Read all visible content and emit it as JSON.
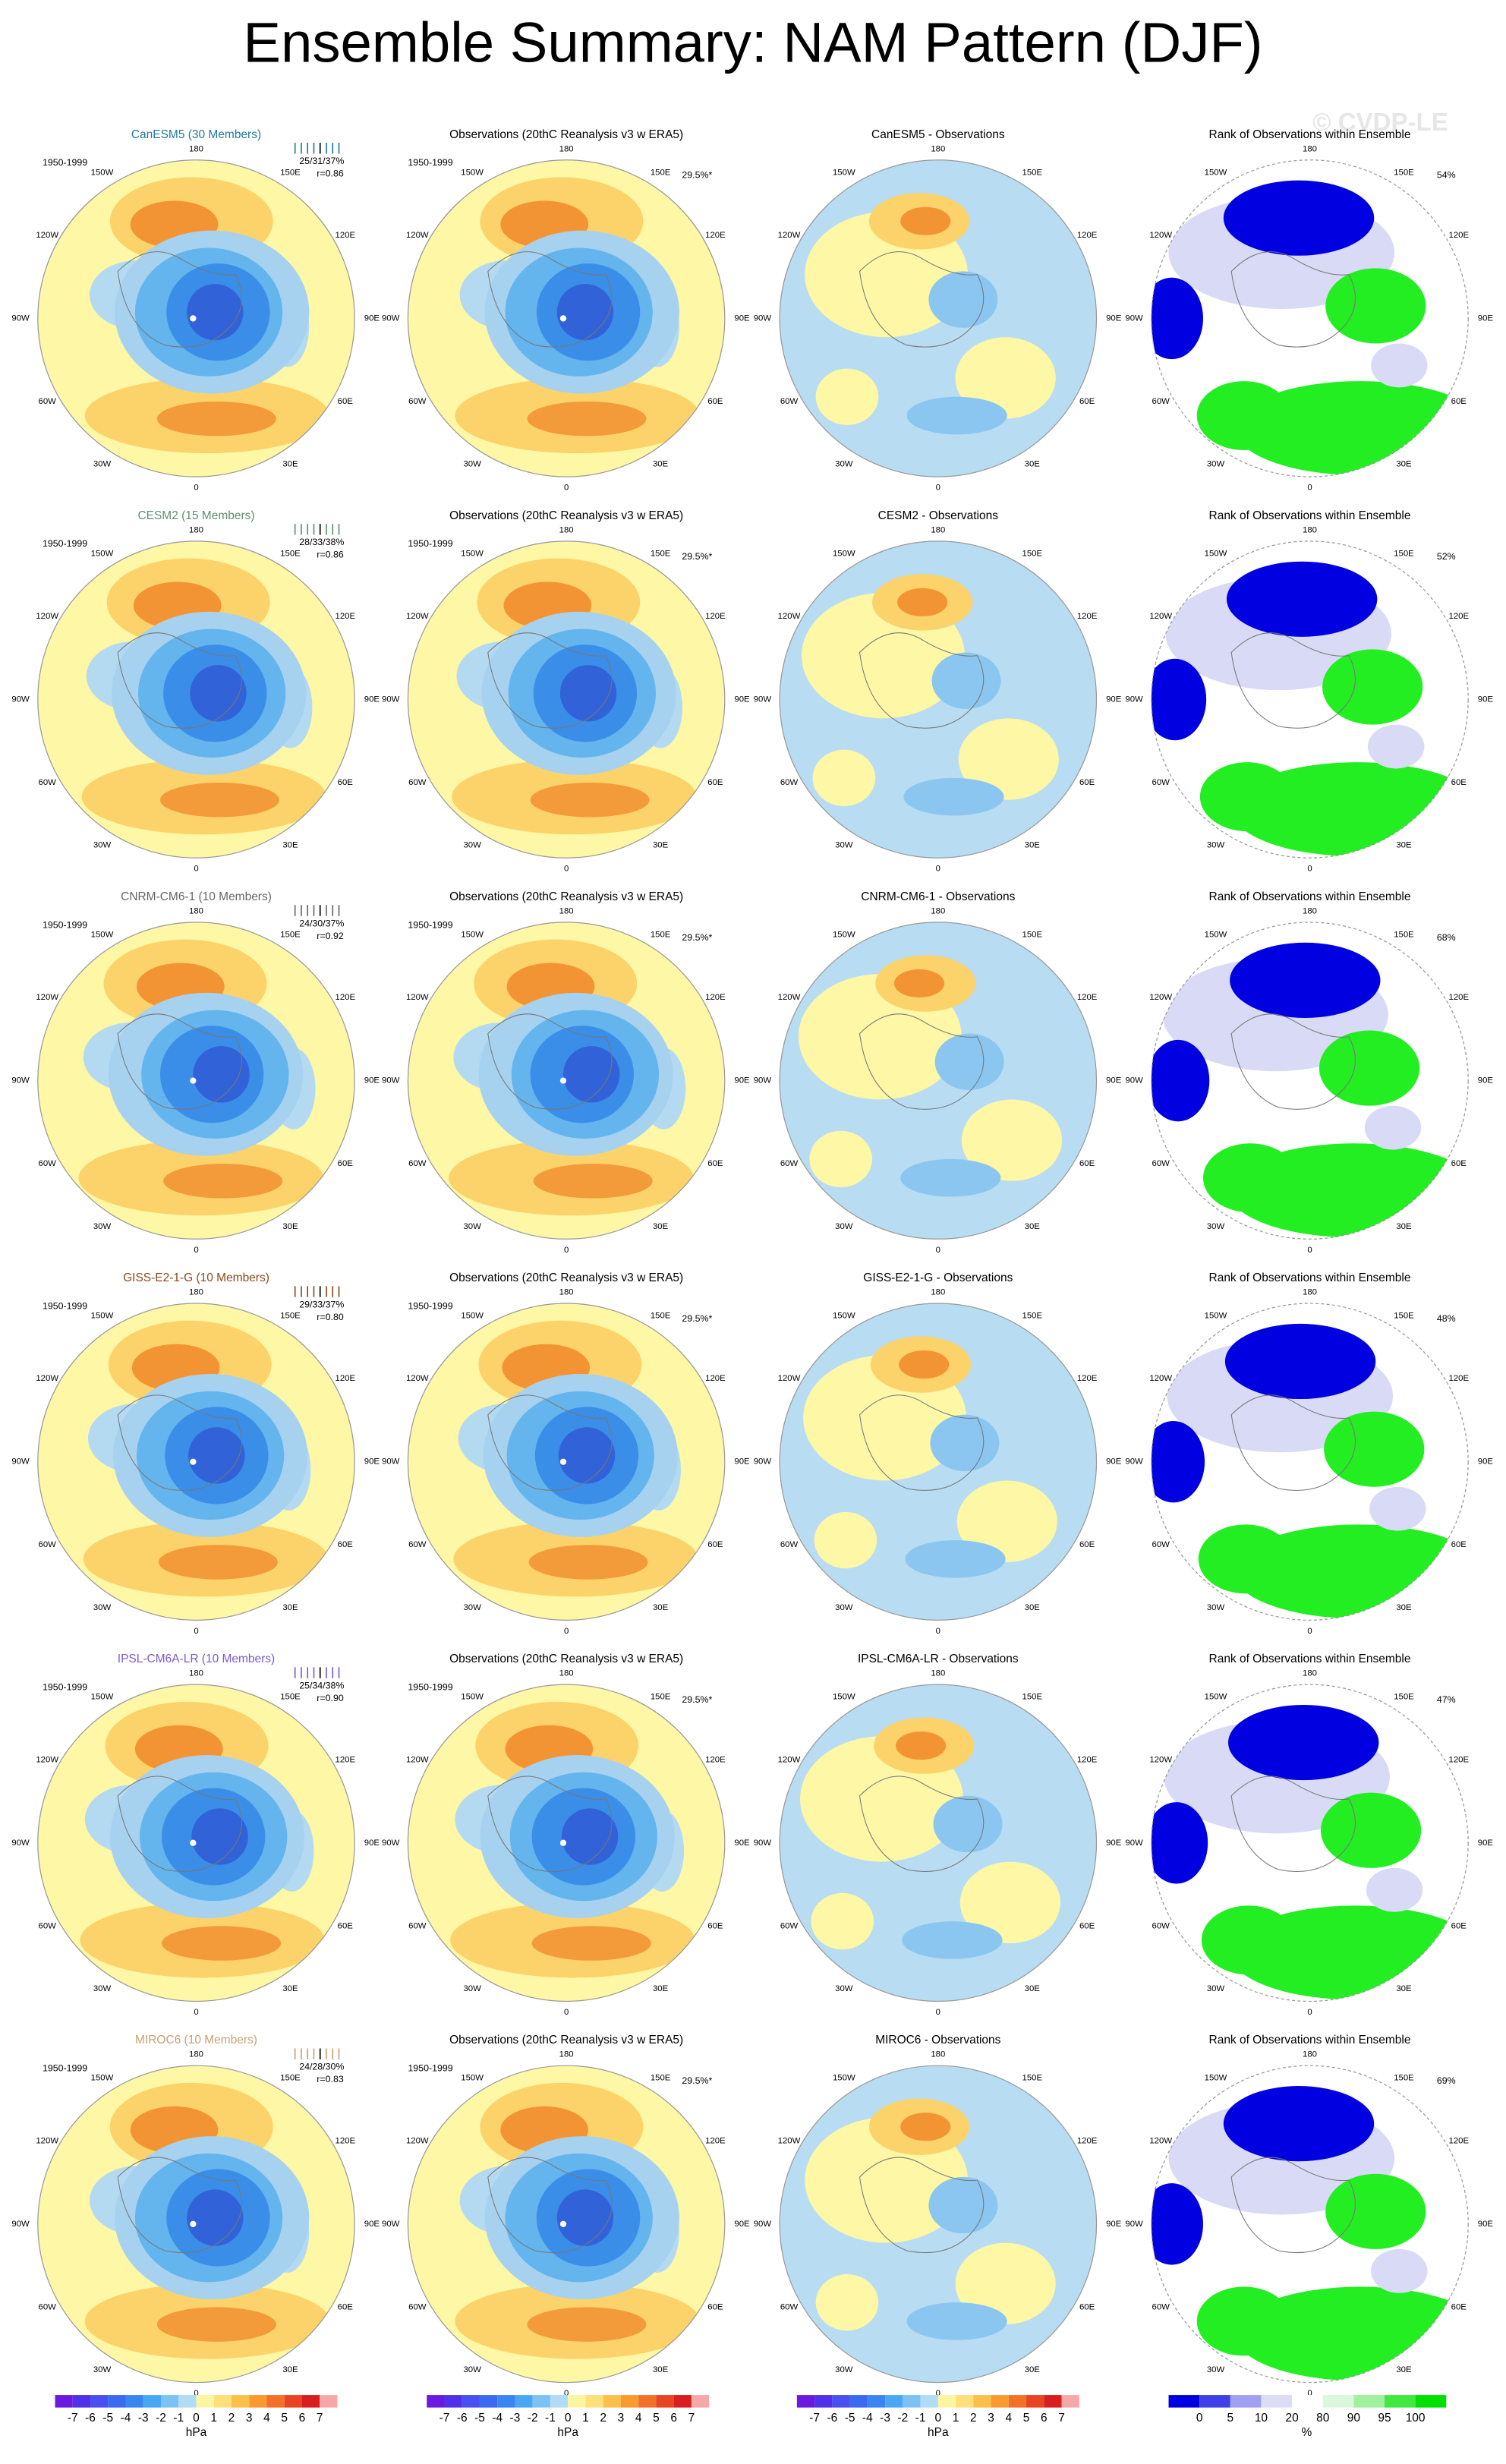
{
  "title": "Ensemble Summary: NAM Pattern (DJF)",
  "watermark": "© CVDP-LE",
  "period": "1950-1999",
  "obs_title": "Observations (20thC Reanalysis v3 w ERA5)",
  "obs_pct": "29.5%*",
  "rank_title": "Rank of Observations within Ensemble",
  "lon_labels": [
    "180",
    "150W",
    "150E",
    "120W",
    "120E",
    "90W",
    "90E",
    "60W",
    "60E",
    "30W",
    "30E",
    "0"
  ],
  "rows": [
    {
      "model": "CanESM5 (30 Members)",
      "color": "#1f7a9c",
      "stats": "25/31/37%",
      "r": "r=0.86",
      "diff_title": "CanESM5 - Observations",
      "rank_pct": "54%"
    },
    {
      "model": "CESM2 (15 Members)",
      "color": "#5f8f6f",
      "stats": "28/33/38%",
      "r": "r=0.86",
      "diff_title": "CESM2 - Observations",
      "rank_pct": "52%"
    },
    {
      "model": "CNRM-CM6-1 (10 Members)",
      "color": "#666666",
      "stats": "24/30/37%",
      "r": "r=0.92",
      "diff_title": "CNRM-CM6-1 - Observations",
      "rank_pct": "68%"
    },
    {
      "model": "GISS-E2-1-G (10 Members)",
      "color": "#8b4a1c",
      "stats": "29/33/37%",
      "r": "r=0.80",
      "diff_title": "GISS-E2-1-G - Observations",
      "rank_pct": "48%"
    },
    {
      "model": "IPSL-CM6A-LR (10 Members)",
      "color": "#7a5acc",
      "stats": "25/34/38%",
      "r": "r=0.90",
      "diff_title": "IPSL-CM6A-LR - Observations",
      "rank_pct": "47%"
    },
    {
      "model": "MIROC6 (10 Members)",
      "color": "#c8a070",
      "stats": "24/28/30%",
      "r": "r=0.83",
      "diff_title": "MIROC6 - Observations",
      "rank_pct": "69%"
    }
  ],
  "anomaly_colorbar": {
    "labels": [
      -7,
      -6,
      -5,
      -4,
      -3,
      -2,
      -1,
      0,
      1,
      2,
      3,
      4,
      5,
      6,
      7
    ],
    "unit": "hPa"
  },
  "rank_colorbar": {
    "labels": [
      0,
      5,
      10,
      20,
      80,
      90,
      95,
      100
    ],
    "unit": "%"
  }
}
